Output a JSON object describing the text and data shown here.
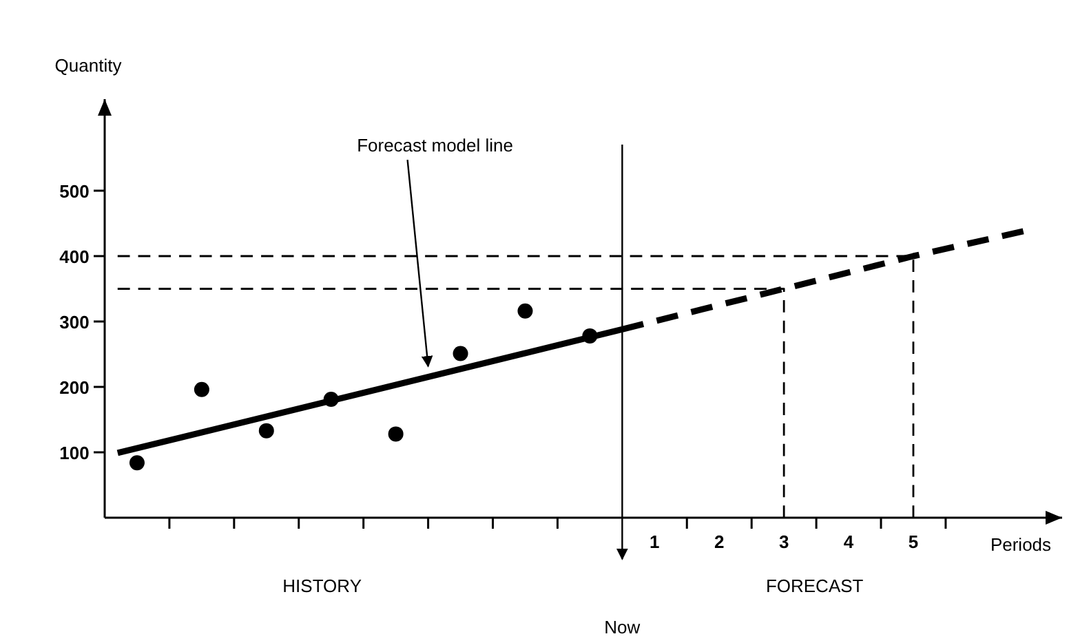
{
  "chart_data": {
    "type": "line",
    "xlabel": "Periods",
    "ylabel": "Quantity",
    "xlim": [
      -7.5,
      7.3
    ],
    "ylim": [
      0,
      640
    ],
    "xticks": [
      {
        "value": -6.5,
        "label": null
      },
      {
        "value": -5.5,
        "label": null
      },
      {
        "value": -4.5,
        "label": null
      },
      {
        "value": -3.5,
        "label": null
      },
      {
        "value": -2.5,
        "label": null
      },
      {
        "value": -1.5,
        "label": null
      },
      {
        "value": -0.5,
        "label": null
      },
      1,
      {
        "value": 1.5,
        "label": null
      },
      2,
      {
        "value": 2.5,
        "label": null
      },
      3,
      {
        "value": 3.5,
        "label": null
      },
      4,
      {
        "value": 4.5,
        "label": null
      },
      5,
      {
        "value": 5.5,
        "label": null
      }
    ],
    "yticks": [
      100,
      200,
      300,
      400,
      500
    ],
    "grid": false,
    "series": [
      {
        "type": "scatter",
        "marker": "circle",
        "color": "#000000",
        "x": [
          -7,
          -6,
          -5,
          -4,
          -3,
          -2,
          -1,
          0
        ],
        "values": [
          84,
          196,
          133,
          181,
          128,
          251,
          316,
          278
        ]
      },
      {
        "line_style": "solid",
        "color": "#000000",
        "x": [
          -7.3,
          0.5
        ],
        "values": [
          99,
          288
        ]
      },
      {
        "line_style": "dashed",
        "color": "#000000",
        "x": [
          0.5,
          3,
          5,
          6.7
        ],
        "values": [
          288,
          350,
          400,
          438
        ]
      },
      {
        "line_style": "dashed",
        "color": "#000000",
        "x": [
          -7.3,
          3,
          3
        ],
        "values": [
          350,
          350,
          0
        ]
      },
      {
        "line_style": "dashed",
        "color": "#000000",
        "x": [
          -7.3,
          5,
          5
        ],
        "values": [
          400,
          400,
          0
        ]
      }
    ],
    "ref_lines": [
      {
        "axis": "x",
        "value": 0.5,
        "label": "Now",
        "color": "#000000"
      }
    ],
    "annotations": [
      {
        "text": "Forecast model line",
        "x": -2.5,
        "y": 223
      },
      "HISTORY",
      "FORECAST"
    ]
  }
}
